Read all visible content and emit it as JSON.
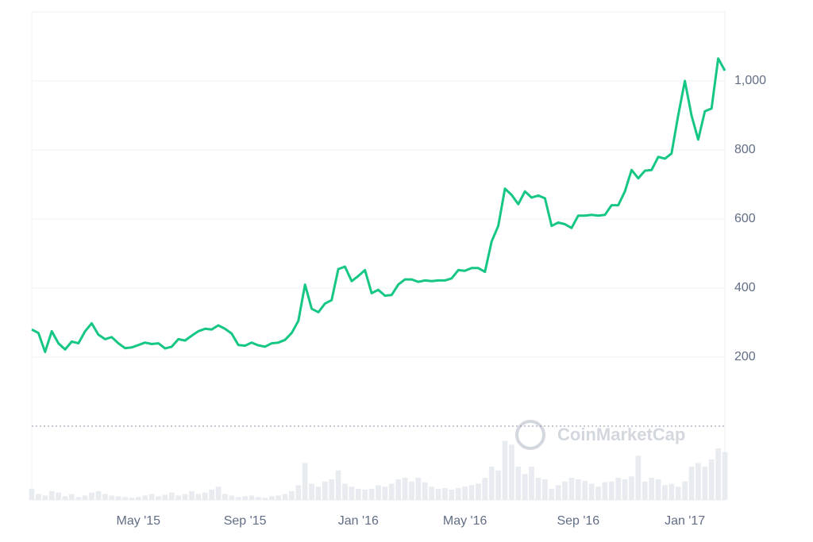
{
  "chart_data": {
    "type": "line",
    "watermark": "CoinMarketCap",
    "categories": [
      null,
      null,
      null,
      null,
      null,
      null,
      null,
      null,
      null,
      null,
      null,
      null,
      null,
      null,
      null,
      null,
      "May '15",
      null,
      null,
      null,
      null,
      null,
      null,
      null,
      null,
      null,
      null,
      null,
      null,
      null,
      null,
      null,
      "Sep '15",
      null,
      null,
      null,
      null,
      null,
      null,
      null,
      null,
      null,
      null,
      null,
      null,
      null,
      null,
      null,
      null,
      "Jan '16",
      null,
      null,
      null,
      null,
      null,
      null,
      null,
      null,
      null,
      null,
      null,
      null,
      null,
      null,
      null,
      "May '16",
      null,
      null,
      null,
      null,
      null,
      null,
      null,
      null,
      null,
      null,
      null,
      null,
      null,
      null,
      null,
      null,
      "Sep '16",
      null,
      null,
      null,
      null,
      null,
      null,
      null,
      null,
      null,
      null,
      null,
      null,
      null,
      null,
      null,
      "Jan '17",
      null,
      null,
      null,
      null,
      null,
      null
    ],
    "values": [
      280,
      270,
      215,
      275,
      240,
      222,
      245,
      240,
      275,
      298,
      265,
      252,
      258,
      240,
      226,
      228,
      235,
      242,
      238,
      240,
      225,
      230,
      252,
      248,
      262,
      275,
      282,
      280,
      292,
      282,
      268,
      235,
      233,
      242,
      234,
      230,
      240,
      242,
      250,
      270,
      305,
      410,
      340,
      330,
      355,
      365,
      455,
      462,
      420,
      435,
      452,
      385,
      395,
      378,
      380,
      410,
      425,
      425,
      418,
      422,
      420,
      422,
      422,
      428,
      452,
      450,
      458,
      458,
      447,
      535,
      580,
      688,
      670,
      643,
      680,
      662,
      668,
      660,
      580,
      590,
      585,
      574,
      610,
      610,
      612,
      610,
      612,
      640,
      640,
      680,
      742,
      718,
      740,
      742,
      780,
      775,
      790,
      900,
      1000,
      900,
      830,
      912,
      920,
      1065,
      1030
    ],
    "volume": [
      15,
      8,
      6,
      12,
      10,
      5,
      8,
      4,
      6,
      10,
      12,
      8,
      6,
      5,
      4,
      3,
      4,
      6,
      8,
      5,
      7,
      10,
      6,
      8,
      12,
      8,
      10,
      14,
      18,
      8,
      6,
      4,
      5,
      6,
      4,
      3,
      5,
      6,
      8,
      12,
      20,
      50,
      22,
      18,
      25,
      28,
      40,
      22,
      18,
      15,
      14,
      15,
      20,
      18,
      22,
      28,
      30,
      25,
      30,
      24,
      18,
      15,
      16,
      14,
      16,
      18,
      20,
      22,
      30,
      45,
      40,
      80,
      75,
      45,
      35,
      45,
      30,
      28,
      15,
      20,
      25,
      30,
      28,
      26,
      22,
      18,
      24,
      25,
      30,
      28,
      32,
      60,
      25,
      30,
      28,
      20,
      22,
      18,
      25,
      45,
      50,
      45,
      55,
      70,
      65
    ],
    "color": "#16c784",
    "volume_color": "#e8ebef",
    "ylim": [
      0,
      1200
    ],
    "yticks": [
      200,
      400,
      600,
      800,
      {
        "value": 1000,
        "label": "1,000"
      }
    ],
    "grid": true
  }
}
